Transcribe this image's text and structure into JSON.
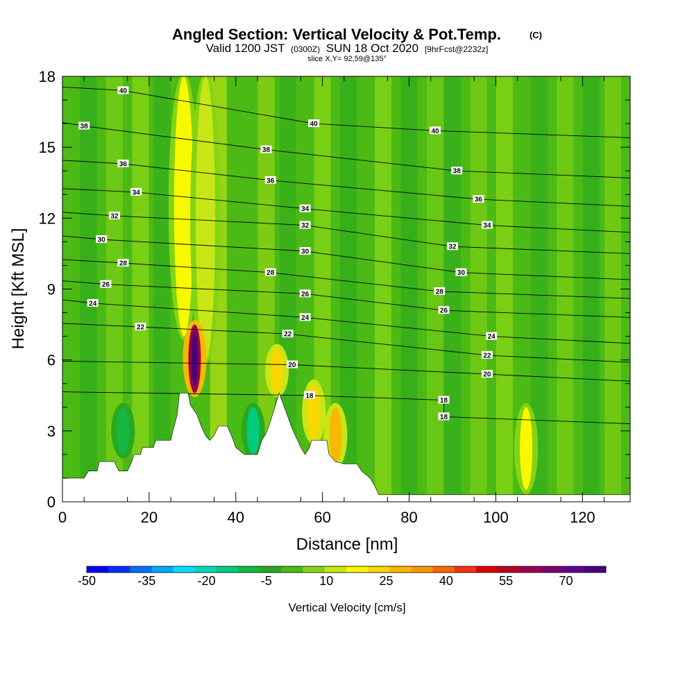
{
  "chart_data": {
    "type": "heatmap",
    "title": "Angled Section: Vertical Velocity & Pot.Temp.",
    "title_tag": "(C)",
    "subtitle_prefix": "Valid 1200 JST",
    "subtitle_utc": "(0300Z)",
    "subtitle_date": "SUN 18 Oct 2020",
    "subtitle_fcst": "[9hrFcst@2232z]",
    "slice_label": "slice X,Y= 92,59@135°",
    "xlabel": "Distance [nm]",
    "ylabel": "Height [Kft MSL]",
    "xlim": [
      0,
      131
    ],
    "ylim": [
      0,
      18
    ],
    "x_ticks": [
      "0",
      "20",
      "40",
      "60",
      "80",
      "100",
      "120"
    ],
    "y_ticks": [
      "0",
      "3",
      "6",
      "9",
      "12",
      "15",
      "18"
    ],
    "colorbar": {
      "label": "Vertical Velocity [cm/s]",
      "range": [
        -50,
        80
      ],
      "tick_labels": [
        "-50",
        "-35",
        "-20",
        "-5",
        "10",
        "25",
        "40",
        "55",
        "70"
      ],
      "colors": [
        "#0000ff",
        "#0030ff",
        "#0070ff",
        "#00a8ff",
        "#00e0ff",
        "#00d8b8",
        "#00cc80",
        "#14b840",
        "#28a820",
        "#4cba14",
        "#84d414",
        "#c8e614",
        "#f8f800",
        "#f8d800",
        "#f8b800",
        "#f89800",
        "#f86800",
        "#f83010",
        "#e00000",
        "#b80020",
        "#9c0050",
        "#800070",
        "#600090",
        "#480078"
      ]
    },
    "contours_theta_C": [
      {
        "value": 40,
        "label_positions": [
          [
            14,
            17.4
          ],
          [
            58,
            16.0
          ],
          [
            86,
            15.7
          ]
        ]
      },
      {
        "value": 38,
        "label_positions": [
          [
            5,
            15.9
          ],
          [
            47,
            14.9
          ],
          [
            91,
            14.0
          ]
        ]
      },
      {
        "value": 36,
        "label_positions": [
          [
            14,
            14.3
          ],
          [
            48,
            13.6
          ],
          [
            96,
            12.8
          ]
        ]
      },
      {
        "value": 34,
        "label_positions": [
          [
            17,
            13.1
          ],
          [
            56,
            12.4
          ],
          [
            98,
            11.7
          ]
        ]
      },
      {
        "value": 32,
        "label_positions": [
          [
            12,
            12.1
          ],
          [
            56,
            11.7
          ],
          [
            90,
            10.8
          ]
        ]
      },
      {
        "value": 30,
        "label_positions": [
          [
            9,
            11.1
          ],
          [
            56,
            10.6
          ],
          [
            92,
            9.7
          ]
        ]
      },
      {
        "value": 28,
        "label_positions": [
          [
            14,
            10.1
          ],
          [
            48,
            9.7
          ],
          [
            87,
            8.9
          ]
        ]
      },
      {
        "value": 26,
        "label_positions": [
          [
            10,
            9.2
          ],
          [
            56,
            8.8
          ],
          [
            88,
            8.1
          ]
        ]
      },
      {
        "value": 24,
        "label_positions": [
          [
            7,
            8.4
          ],
          [
            56,
            7.8
          ],
          [
            99,
            7.0
          ]
        ]
      },
      {
        "value": 22,
        "label_positions": [
          [
            18,
            7.4
          ],
          [
            52,
            7.1
          ],
          [
            98,
            6.2
          ]
        ]
      },
      {
        "value": 20,
        "label_positions": [
          [
            53,
            5.8
          ],
          [
            98,
            5.4
          ]
        ]
      },
      {
        "value": 18,
        "label_positions": [
          [
            57,
            4.5
          ],
          [
            88,
            4.3
          ],
          [
            88,
            3.6
          ]
        ]
      }
    ],
    "terrain_profile": [
      [
        0,
        1.0
      ],
      [
        5,
        1.0
      ],
      [
        6,
        1.3
      ],
      [
        8,
        1.3
      ],
      [
        8.5,
        1.7
      ],
      [
        12,
        1.7
      ],
      [
        13,
        1.3
      ],
      [
        15,
        1.3
      ],
      [
        16,
        1.7
      ],
      [
        16.5,
        2.0
      ],
      [
        18,
        2.0
      ],
      [
        18.5,
        2.3
      ],
      [
        21,
        2.3
      ],
      [
        21.5,
        2.6
      ],
      [
        25,
        2.6
      ],
      [
        25.5,
        3.0
      ],
      [
        26.5,
        3.7
      ],
      [
        27,
        4.6
      ],
      [
        29,
        4.6
      ],
      [
        29.5,
        4.1
      ],
      [
        31,
        3.7
      ],
      [
        32,
        3.2
      ],
      [
        33,
        2.8
      ],
      [
        34,
        2.6
      ],
      [
        35,
        2.8
      ],
      [
        36,
        3.2
      ],
      [
        38,
        3.2
      ],
      [
        39,
        2.8
      ],
      [
        40,
        2.3
      ],
      [
        42,
        2.0
      ],
      [
        45,
        2.0
      ],
      [
        45.5,
        2.3
      ],
      [
        46,
        2.6
      ],
      [
        47,
        2.9
      ],
      [
        48,
        3.4
      ],
      [
        49,
        4.0
      ],
      [
        50,
        4.6
      ],
      [
        51,
        4.1
      ],
      [
        52,
        3.6
      ],
      [
        53,
        3.1
      ],
      [
        54,
        2.7
      ],
      [
        55,
        2.3
      ],
      [
        56,
        2.0
      ],
      [
        57,
        2.3
      ],
      [
        57.5,
        2.6
      ],
      [
        61,
        2.6
      ],
      [
        61.5,
        2.0
      ],
      [
        63,
        1.7
      ],
      [
        65,
        1.6
      ],
      [
        68,
        1.6
      ],
      [
        69,
        1.3
      ],
      [
        71,
        1.0
      ],
      [
        72,
        0.7
      ],
      [
        73,
        0.3
      ],
      [
        131,
        0.3
      ]
    ],
    "features": [
      {
        "name": "updraft column",
        "x": 28,
        "y_range": [
          7,
          18
        ],
        "w_cm_s": 20
      },
      {
        "name": "updraft column",
        "x": 33,
        "y_range": [
          6,
          18
        ],
        "w_cm_s": 12
      },
      {
        "name": "strong updraft",
        "x": 30.5,
        "y_range": [
          4.6,
          7.5
        ],
        "w_cm_s": 60
      },
      {
        "name": "updraft",
        "x": 49.5,
        "y_range": [
          4.6,
          6.5
        ],
        "w_cm_s": 25
      },
      {
        "name": "updraft",
        "x": 58,
        "y_range": [
          2.6,
          5.0
        ],
        "w_cm_s": 25
      },
      {
        "name": "updraft",
        "x": 63,
        "y_range": [
          1.6,
          4.0
        ],
        "w_cm_s": 30
      },
      {
        "name": "updraft",
        "x": 107,
        "y_range": [
          0.5,
          4.0
        ],
        "w_cm_s": 15
      },
      {
        "name": "downdraft",
        "x": 14,
        "y_range": [
          2.0,
          4.0
        ],
        "w_cm_s": -10
      },
      {
        "name": "downdraft",
        "x": 44,
        "y_range": [
          2.0,
          4.0
        ],
        "w_cm_s": -15
      }
    ]
  }
}
